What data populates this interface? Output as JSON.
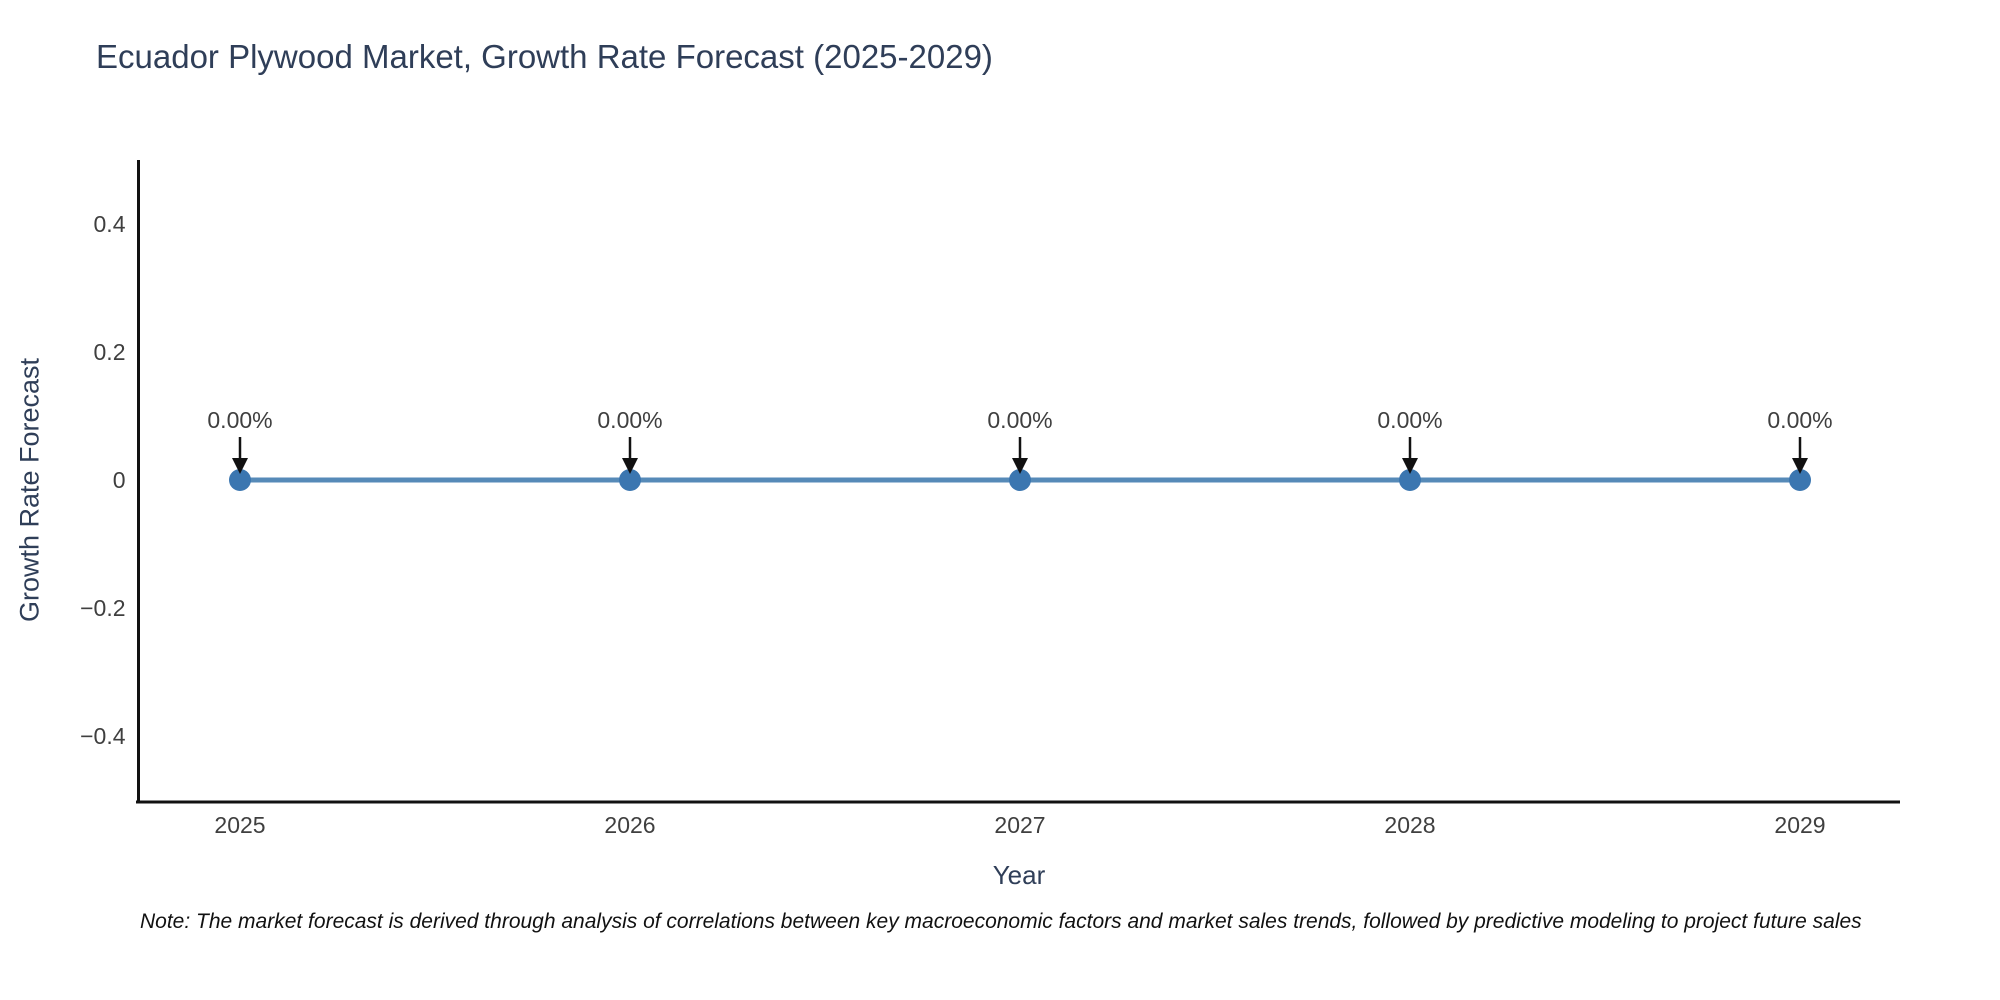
{
  "chart": {
    "title": "Ecuador Plywood Market, Growth Rate Forecast (2025-2029)",
    "ylabel": "Growth Rate Forecast",
    "xlabel": "Year",
    "note": "Note: The market forecast is derived through analysis of correlations between key macroeconomic factors and market sales trends, followed by predictive modeling to project future sales"
  },
  "chart_data": {
    "type": "line",
    "title": "Ecuador Plywood Market, Growth Rate Forecast (2025-2029)",
    "xlabel": "Year",
    "ylabel": "Growth Rate Forecast",
    "x": [
      2025,
      2026,
      2027,
      2028,
      2029
    ],
    "series": [
      {
        "name": "Growth Rate Forecast",
        "values": [
          0,
          0,
          0,
          0,
          0
        ]
      }
    ],
    "point_labels": [
      "0.00%",
      "0.00%",
      "0.00%",
      "0.00%",
      "0.00%"
    ],
    "ytick_labels": [
      "0.4",
      "0.2",
      "0",
      "−0.2",
      "−0.4"
    ],
    "ytick_values": [
      0.4,
      0.2,
      0,
      -0.2,
      -0.4
    ],
    "ylim": [
      -0.5,
      0.5
    ],
    "grid": false,
    "legend": "none",
    "annotation_style": "down-arrow-from-label-to-point",
    "colors": {
      "line": "#4d84b4",
      "marker": "#3b76b0",
      "axis": "#111111",
      "arrow": "#111111",
      "tick_label": "#3f3f3f",
      "annotation_text": "#3f3f3f",
      "title": "#2f3e58"
    }
  }
}
